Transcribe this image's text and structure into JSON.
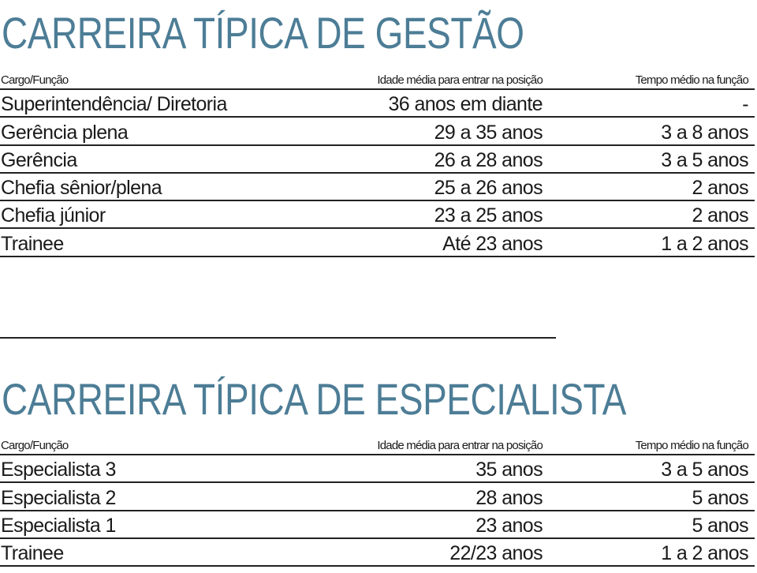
{
  "sections": [
    {
      "title": "CARREIRA TÍPICA DE GESTÃO",
      "columns": [
        "Cargo/Função",
        "Idade média para entrar na posição",
        "Tempo médio na função"
      ],
      "rows": [
        [
          "Superintendência/ Diretoria",
          "36 anos em diante",
          "-"
        ],
        [
          "Gerência plena",
          "29 a 35 anos",
          "3 a 8 anos"
        ],
        [
          "Gerência",
          "26 a 28 anos",
          "3 a 5 anos"
        ],
        [
          "Chefia sênior/plena",
          "25 a 26 anos",
          "2 anos"
        ],
        [
          "Chefia júnior",
          "23 a 25 anos",
          "2 anos"
        ],
        [
          "Trainee",
          "Até 23 anos",
          "1 a 2 anos"
        ]
      ]
    },
    {
      "title": "CARREIRA TÍPICA DE ESPECIALISTA",
      "columns": [
        "Cargo/Função",
        "Idade média para entrar na posição",
        "Tempo médio na função"
      ],
      "rows": [
        [
          "Especialista 3",
          "35 anos",
          "3 a 5 anos"
        ],
        [
          "Especialista 2",
          "28 anos",
          "5 anos"
        ],
        [
          "Especialista 1",
          "23 anos",
          "5 anos"
        ],
        [
          "Trainee",
          "22/23 anos",
          "1 a 2 anos"
        ]
      ]
    }
  ]
}
